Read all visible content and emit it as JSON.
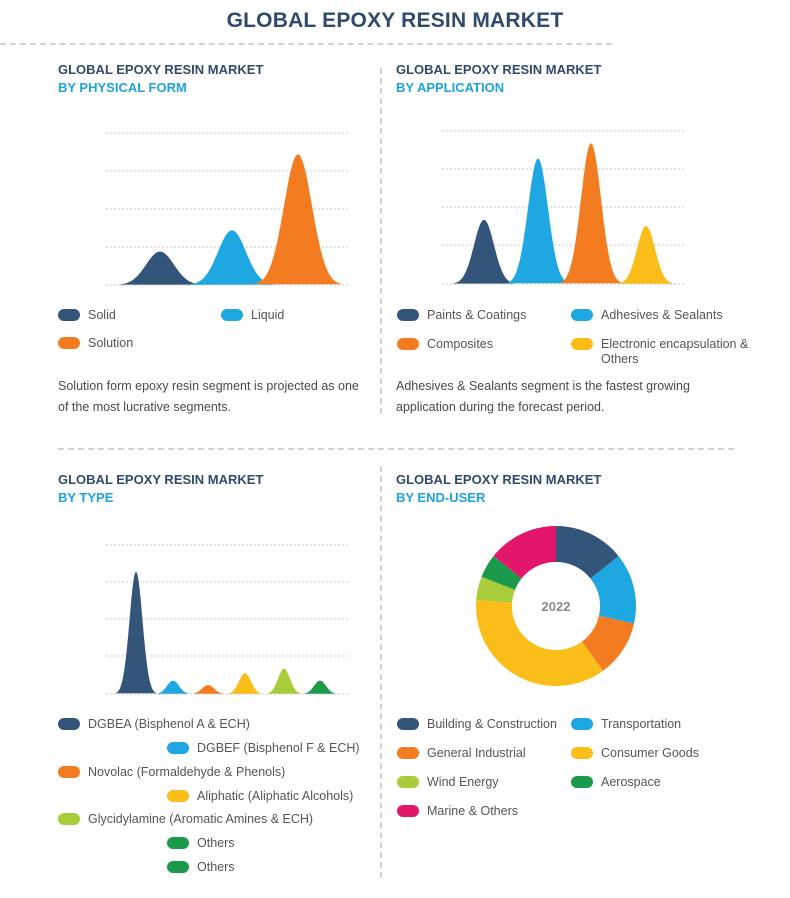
{
  "title": "GLOBAL EPOXY RESIN MARKET",
  "colors": {
    "navy": "#34557a",
    "blue": "#1ea7e1",
    "orange": "#f47c20",
    "yellow": "#fbbd18",
    "lime": "#a8cc3a",
    "green": "#1a9a4a",
    "pink": "#e2176b",
    "title_navy": "#2f4a6d",
    "title_blue": "#1ea3dc"
  },
  "panels": {
    "physical_form": {
      "title1": "GLOBAL EPOXY RESIN MARKET",
      "title2": "BY PHYSICAL FORM",
      "note": [
        "Solution form epoxy resin segment is projected as one",
        "of the most lucrative segments."
      ]
    },
    "application": {
      "title1": "GLOBAL EPOXY RESIN MARKET",
      "title2": "BY APPLICATION",
      "note": [
        "Adhesives & Sealants segment is the fastest growing",
        "application during the forecast period."
      ]
    },
    "type": {
      "title1": "GLOBAL EPOXY RESIN MARKET",
      "title2": "BY TYPE"
    },
    "end_user": {
      "title1": "GLOBAL EPOXY RESIN MARKET",
      "title2": "BY END-USER"
    }
  },
  "chart_data": [
    {
      "type": "area",
      "title": "BY PHYSICAL FORM",
      "categories": [
        "Solid",
        "Liquid",
        "Solution"
      ],
      "values": [
        22,
        36,
        86
      ],
      "colors": [
        "#34557a",
        "#1ea7e1",
        "#f47c20"
      ],
      "ylim": [
        0,
        100
      ],
      "grid": true,
      "legend": "bottom"
    },
    {
      "type": "area",
      "title": "BY APPLICATION",
      "categories": [
        "Paints & Coatings",
        "Adhesives & Sealants",
        "Composites",
        "Electronic encapsulation & Others"
      ],
      "values": [
        42,
        82,
        92,
        38
      ],
      "colors": [
        "#34557a",
        "#1ea7e1",
        "#f47c20",
        "#fbbd18"
      ],
      "ylim": [
        0,
        100
      ],
      "grid": true,
      "legend": "bottom"
    },
    {
      "type": "area",
      "title": "BY TYPE",
      "categories": [
        "DGBEA (Bisphenol A & ECH)",
        "DGBEF (Bisphenol F & ECH)",
        "Novolac (Formaldehyde & Phenols)",
        "Aliphatic (Aliphatic Alcohols)",
        "Glycidylamine (Aromatic Amines & ECH)",
        "Others",
        "Others"
      ],
      "values": [
        82,
        9,
        6,
        14,
        17,
        9,
        0
      ],
      "colors": [
        "#34557a",
        "#1ea7e1",
        "#f47c20",
        "#fbbd18",
        "#a8cc3a",
        "#1a9a4a",
        "#1a9a4a"
      ],
      "ylim": [
        0,
        100
      ],
      "grid": true,
      "legend": "bottom"
    },
    {
      "type": "pie",
      "title": "BY END-USER",
      "center_label": "2022",
      "categories": [
        "Building & Construction",
        "Transportation",
        "General Industrial",
        "Consumer Goods",
        "Wind Energy",
        "Aerospace",
        "Marine & Others"
      ],
      "values": [
        15,
        15,
        12,
        38,
        5,
        5,
        15
      ],
      "colors": [
        "#34557a",
        "#1ea7e1",
        "#f47c20",
        "#fbbd18",
        "#a8cc3a",
        "#1a9a4a",
        "#e2176b"
      ],
      "legend": "bottom"
    }
  ]
}
